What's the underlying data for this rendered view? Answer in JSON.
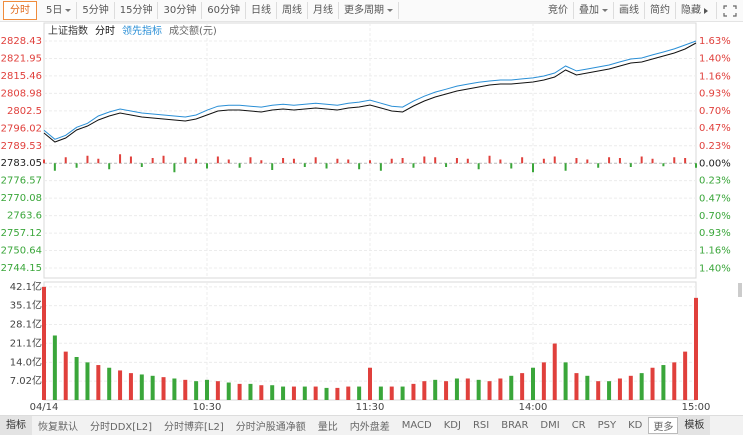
{
  "toolbar": {
    "left": [
      {
        "label": "分时",
        "active": true
      },
      {
        "label": "5日",
        "dropdown": true
      },
      {
        "label": "5分钟"
      },
      {
        "label": "15分钟"
      },
      {
        "label": "30分钟"
      },
      {
        "label": "60分钟"
      },
      {
        "label": "日线"
      },
      {
        "label": "周线"
      },
      {
        "label": "月线"
      },
      {
        "label": "更多周期",
        "dropdown": true
      }
    ],
    "right": [
      {
        "label": "竞价"
      },
      {
        "label": "叠加",
        "dropdown": true
      },
      {
        "label": "画线"
      },
      {
        "label": "简约"
      },
      {
        "label": "隐藏",
        "expand": true
      }
    ]
  },
  "chart_data": {
    "type": "line",
    "title": "上证指数",
    "x": [
      0,
      4,
      8,
      12,
      16,
      20,
      24,
      28,
      32,
      36,
      40,
      44,
      48,
      52,
      56,
      60,
      64,
      68,
      72,
      76,
      80,
      84,
      88,
      92,
      96,
      100,
      104,
      108,
      112,
      116,
      120,
      124,
      128,
      132,
      136,
      140,
      144,
      148,
      152,
      156,
      160,
      164,
      168,
      172,
      176,
      180,
      184,
      188,
      192,
      196,
      200,
      204,
      208,
      212,
      216,
      220,
      224,
      228,
      232,
      236,
      240
    ],
    "xlim": [
      0,
      240
    ],
    "xticks": [
      {
        "value": 0,
        "label": "04/14"
      },
      {
        "value": 60,
        "label": "10:30"
      },
      {
        "value": 120,
        "label": "11:30"
      },
      {
        "value": 180,
        "label": "14:00"
      },
      {
        "value": 240,
        "label": "15:00"
      }
    ],
    "ylim": [
      2740.44,
      2835.11
    ],
    "yticks": [
      2828.43,
      2821.95,
      2815.46,
      2808.98,
      2802.5,
      {
        "value": 2796.02,
        "label": "2796.02"
      },
      2789.53,
      2783.05,
      2776.57,
      2770.08,
      2763.6,
      2757.12,
      2750.64,
      2744.15
    ],
    "y2lim": [
      -1.53,
      1.87
    ],
    "y2ticks": [
      {
        "value": 1.63,
        "label": "1.63%"
      },
      {
        "value": 1.4,
        "label": "1.40%"
      },
      {
        "value": 1.16,
        "label": "1.16%"
      },
      {
        "value": 0.93,
        "label": "0.93%"
      },
      {
        "value": 0.7,
        "label": "0.70%"
      },
      {
        "value": 0.47,
        "label": "0.47%"
      },
      {
        "value": 0.23,
        "label": "0.23%"
      },
      {
        "value": 0,
        "label": "0.00%"
      },
      {
        "value": -0.23,
        "label": "0.23%"
      },
      {
        "value": -0.47,
        "label": "0.47%"
      },
      {
        "value": -0.7,
        "label": "0.70%"
      },
      {
        "value": -0.93,
        "label": "0.93%"
      },
      {
        "value": -1.16,
        "label": "1.16%"
      },
      {
        "value": -1.4,
        "label": "1.40%"
      }
    ],
    "grid": true,
    "series": [
      {
        "name": "分时",
        "color": "#111111",
        "values": [
          2794.27,
          2790.93,
          2792.41,
          2795.39,
          2796.87,
          2799.1,
          2800.58,
          2801.7,
          2800.95,
          2800.21,
          2799.84,
          2799.47,
          2799.1,
          2798.73,
          2799.47,
          2800.95,
          2802.44,
          2802.81,
          2802.81,
          2802.44,
          2802.07,
          2802.81,
          2803.18,
          2802.81,
          2803.18,
          2803.55,
          2803.18,
          2802.81,
          2803.55,
          2803.93,
          2804.67,
          2803.55,
          2802.44,
          2802.07,
          2804.3,
          2806.15,
          2807.64,
          2808.75,
          2809.87,
          2810.61,
          2811.35,
          2812.09,
          2812.46,
          2812.46,
          2812.84,
          2813.21,
          2813.95,
          2815.06,
          2817.66,
          2815.81,
          2816.55,
          2817.29,
          2818.03,
          2819.15,
          2820.26,
          2820.63,
          2821.75,
          2822.86,
          2823.98,
          2825.46,
          2827.69
        ]
      },
      {
        "name": "领先指标",
        "color": "#2a8fd6",
        "values": [
          2795.27,
          2791.93,
          2793.41,
          2796.39,
          2797.87,
          2800.6,
          2802.08,
          2803.2,
          2802.45,
          2801.71,
          2801.34,
          2800.97,
          2800.6,
          2800.23,
          2800.97,
          2802.75,
          2804.24,
          2804.61,
          2804.61,
          2804.24,
          2803.87,
          2804.61,
          2804.98,
          2804.61,
          2804.98,
          2805.35,
          2804.98,
          2804.61,
          2805.35,
          2805.73,
          2806.47,
          2805.35,
          2804.24,
          2803.87,
          2806.1,
          2807.95,
          2809.44,
          2810.55,
          2811.67,
          2812.41,
          2813.15,
          2813.59,
          2813.96,
          2813.96,
          2814.34,
          2814.71,
          2815.45,
          2816.56,
          2819.16,
          2817.31,
          2818.05,
          2818.79,
          2819.53,
          2820.65,
          2821.76,
          2822.13,
          2823.25,
          2824.36,
          2825.48,
          2826.96,
          2828.43
        ]
      }
    ],
    "bars": {
      "up_color": "#e0403c",
      "down_color": "#3aa63a",
      "values": [
        0.05,
        -0.1,
        0.08,
        -0.06,
        0.1,
        0.06,
        -0.08,
        0.12,
        0.09,
        -0.05,
        0.07,
        0.1,
        -0.12,
        0.08,
        0.06,
        -0.07,
        0.09,
        0.05,
        -0.06,
        0.08,
        0.04,
        -0.09,
        0.07,
        0.06,
        -0.05,
        0.08,
        -0.07,
        0.06,
        0.05,
        -0.08,
        0.04,
        -0.1,
        0.06,
        0.07,
        -0.06,
        0.09,
        0.08,
        -0.05,
        0.07,
        0.06,
        -0.08,
        0.1,
        0.05,
        -0.07,
        0.08,
        -0.12,
        0.06,
        0.09,
        -0.1,
        0.07,
        0.05,
        -0.06,
        0.08,
        0.07,
        -0.05,
        0.09,
        0.06,
        -0.04,
        0.08,
        0.07,
        -0.06
      ]
    },
    "volume": {
      "name": "成交额(元)",
      "ylim": [
        0,
        43.9
      ],
      "yticks": [
        {
          "value": 42.1,
          "label": "42.1亿"
        },
        {
          "value": 35.1,
          "label": "35.1亿"
        },
        {
          "value": 28.1,
          "label": "28.1亿"
        },
        {
          "value": 21.1,
          "label": "21.1亿"
        },
        {
          "value": 14.0,
          "label": "14.0亿"
        },
        {
          "value": 7.02,
          "label": "7.02亿"
        }
      ],
      "values": [
        42.1,
        24,
        18,
        16,
        14,
        13,
        12,
        11,
        10,
        9.5,
        9,
        8.5,
        8,
        7.5,
        7,
        7.5,
        7,
        6.5,
        6,
        6,
        5.5,
        5.5,
        5,
        5,
        5,
        5,
        4.5,
        4.5,
        5,
        5,
        12,
        5,
        5,
        5,
        6,
        7,
        7.5,
        7,
        8,
        8,
        7.5,
        7,
        8,
        9,
        10,
        12,
        14,
        21,
        14,
        10,
        9,
        7,
        7,
        8,
        9,
        10,
        12,
        13,
        14,
        18,
        38
      ],
      "colors": [
        "#e0403c",
        "#3aa63a",
        "#e0403c",
        "#3aa63a",
        "#3aa63a",
        "#e0403c",
        "#3aa63a",
        "#e0403c",
        "#e0403c",
        "#3aa63a",
        "#3aa63a",
        "#e0403c",
        "#3aa63a",
        "#e0403c",
        "#3aa63a",
        "#3aa63a",
        "#e0403c",
        "#3aa63a",
        "#e0403c",
        "#3aa63a",
        "#e0403c",
        "#3aa63a",
        "#3aa63a",
        "#e0403c",
        "#3aa63a",
        "#e0403c",
        "#3aa63a",
        "#e0403c",
        "#e0403c",
        "#3aa63a",
        "#e0403c",
        "#3aa63a",
        "#e0403c",
        "#3aa63a",
        "#e0403c",
        "#e0403c",
        "#3aa63a",
        "#e0403c",
        "#3aa63a",
        "#e0403c",
        "#3aa63a",
        "#e0403c",
        "#e0403c",
        "#3aa63a",
        "#e0403c",
        "#3aa63a",
        "#e0403c",
        "#e0403c",
        "#3aa63a",
        "#e0403c",
        "#3aa63a",
        "#e0403c",
        "#3aa63a",
        "#e0403c",
        "#e0403c",
        "#3aa63a",
        "#e0403c",
        "#3aa63a",
        "#e0403c",
        "#e0403c",
        "#e0403c"
      ]
    }
  },
  "tabs": [
    {
      "label": "指标",
      "kind": "head"
    },
    {
      "label": "恢复默认"
    },
    {
      "label": "分时DDX[L2]"
    },
    {
      "label": "分时博弈[L2]"
    },
    {
      "label": "分时沪股通净额"
    },
    {
      "label": "量比"
    },
    {
      "label": "内外盘差"
    },
    {
      "label": "MACD"
    },
    {
      "label": "KDJ"
    },
    {
      "label": "RSI"
    },
    {
      "label": "BRAR"
    },
    {
      "label": "DMI"
    },
    {
      "label": "CR"
    },
    {
      "label": "PSY"
    },
    {
      "label": "KD"
    },
    {
      "label": "更多",
      "kind": "box"
    },
    {
      "label": "模板",
      "kind": "head"
    }
  ]
}
